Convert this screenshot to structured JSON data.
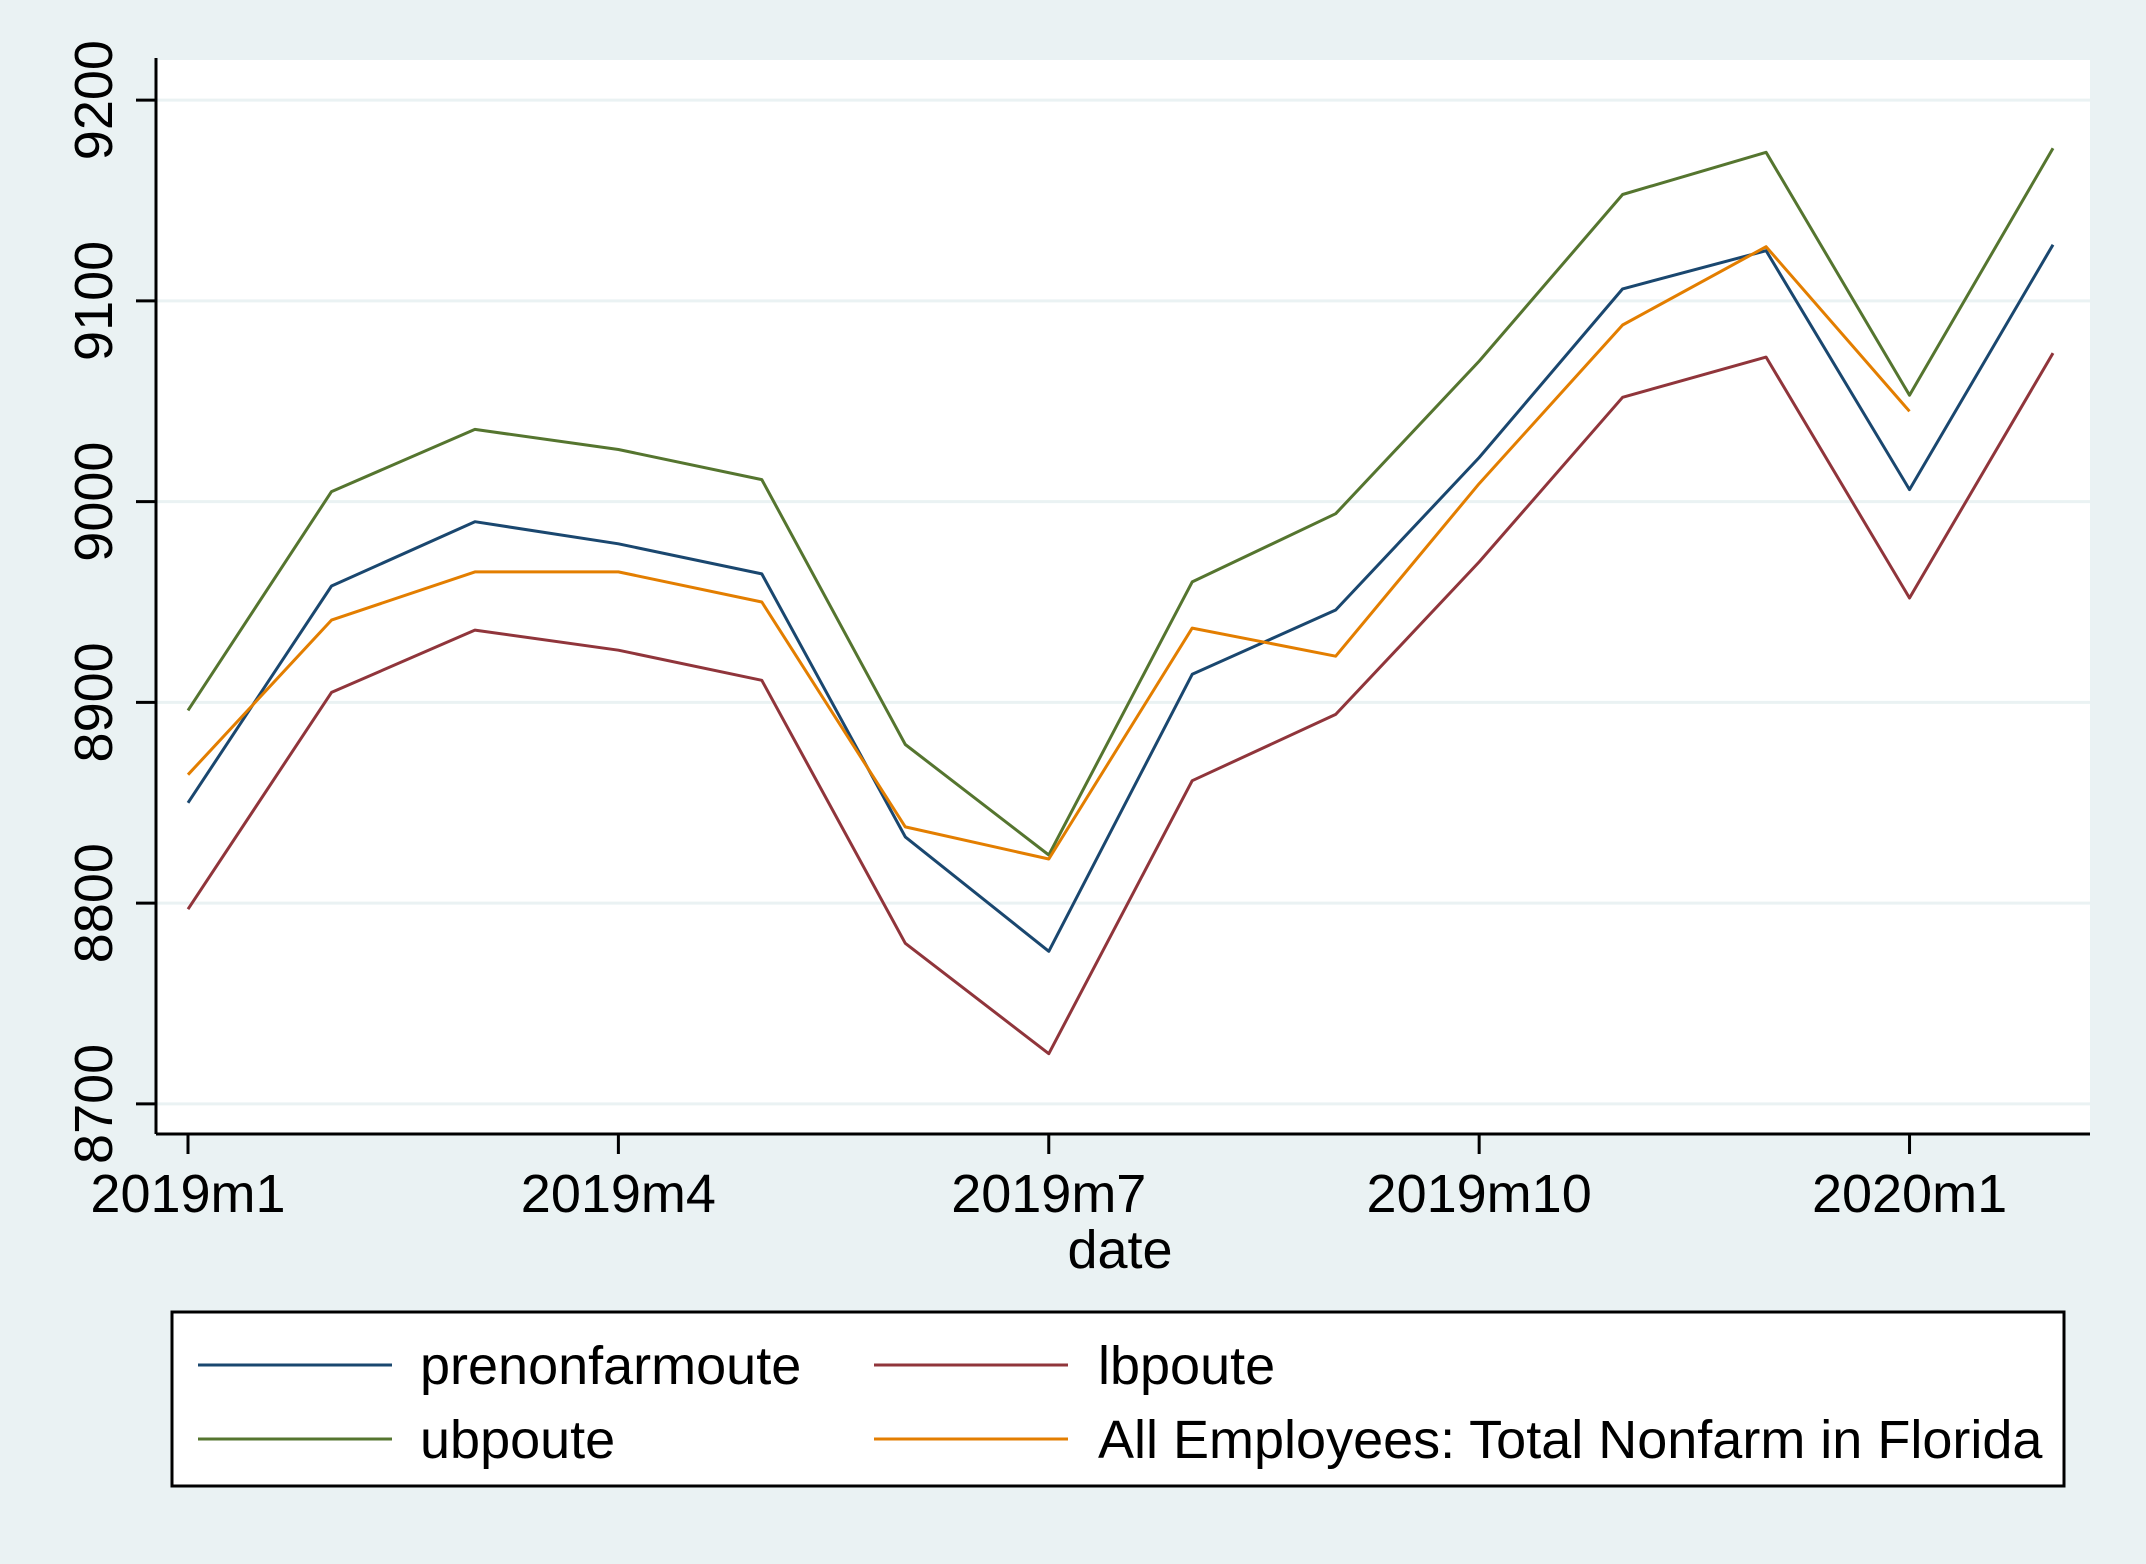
{
  "chart_data": {
    "type": "line",
    "xlabel": "date",
    "ylabel": "",
    "x": [
      "2019m1",
      "2019m2",
      "2019m3",
      "2019m4",
      "2019m5",
      "2019m6",
      "2019m7",
      "2019m8",
      "2019m9",
      "2019m10",
      "2019m11",
      "2019m12",
      "2020m1",
      "2020m2"
    ],
    "x_tick_labels": [
      "2019m1",
      "2019m4",
      "2019m7",
      "2019m10",
      "2020m1"
    ],
    "x_tick_index": [
      0,
      3,
      6,
      9,
      12
    ],
    "y_ticks": [
      8700,
      8800,
      8900,
      9000,
      9100,
      9200
    ],
    "ylim": [
      8685,
      9220
    ],
    "grid": true,
    "legend_position": "bottom",
    "series": [
      {
        "name": "prenonfarmoute",
        "color": "#1a476f",
        "values": [
          8850,
          8958,
          8990,
          8979,
          8964,
          8833,
          8776,
          8914,
          8946,
          9022,
          9106,
          9125,
          9006,
          9128
        ]
      },
      {
        "name": "lbpoute",
        "color": "#90353b",
        "values": [
          8797,
          8905,
          8936,
          8926,
          8911,
          8780,
          8725,
          8861,
          8894,
          8970,
          9052,
          9072,
          8952,
          9074
        ]
      },
      {
        "name": "ubpoute",
        "color": "#55752f",
        "values": [
          8896,
          9005,
          9036,
          9026,
          9011,
          8879,
          8824,
          8960,
          8994,
          9070,
          9153,
          9174,
          9053,
          9176
        ]
      },
      {
        "name": "All Employees: Total Nonfarm in Florida",
        "color": "#e37e00",
        "values": [
          8864,
          8941,
          8965,
          8965,
          8950,
          8838,
          8822,
          8937,
          8923,
          9009,
          9088,
          9127,
          9045,
          null
        ]
      }
    ]
  }
}
